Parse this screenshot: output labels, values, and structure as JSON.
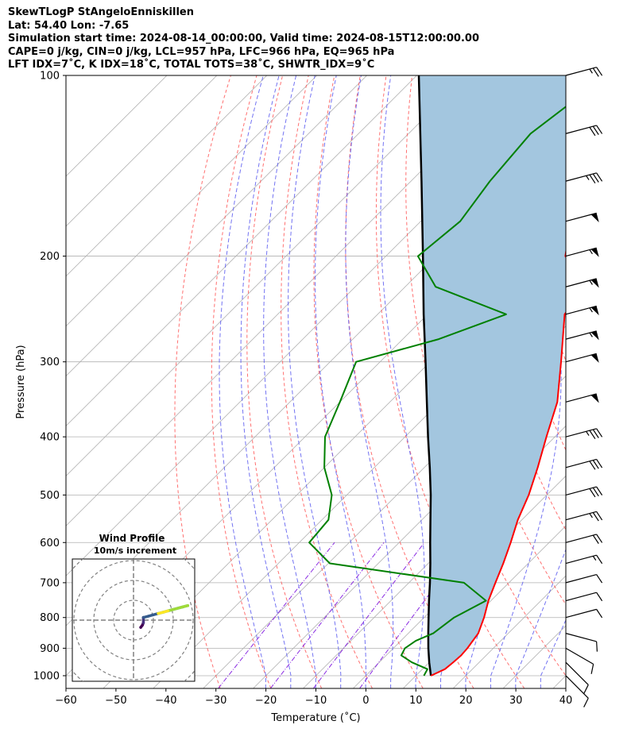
{
  "header": {
    "line1": "SkewTLogP StAngeloEnniskillen",
    "line2": "Lat: 54.40   Lon: -7.65",
    "line3": "Simulation start time: 2024-08-14_00:00:00, Valid time: 2024-08-15T12:00:00.00",
    "line4": "CAPE=0 j/kg, CIN=0 j/kg, LCL=957 hPa, LFC=966 hPa, EQ=965 hPa",
    "line5": "LFT IDX=7˚C, K IDX=18˚C, TOTAL TOTS=38˚C, SHWTR_IDX=9˚C"
  },
  "colors": {
    "temperature": "#ff0000",
    "dewpoint": "#008000",
    "parcel": "#000000",
    "shading": "#a3c6df",
    "dry_adiabat": "#ff6060",
    "moist_adiabat": "#5b5bf0",
    "mixing_ratio": "#8a2be2",
    "grid": "#b0b0b0"
  },
  "chart_data": {
    "type": "line",
    "subtype": "skew-t log-p",
    "xlabel": "Temperature (˚C)",
    "ylabel": "Pressure (hPa)",
    "xlim": [
      -60,
      40
    ],
    "ylim": [
      1050,
      100
    ],
    "y_scale": "log",
    "grid": true,
    "x_ticks": [
      "−60",
      "−50",
      "−40",
      "−30",
      "−20",
      "−10",
      "0",
      "10",
      "20",
      "30",
      "40"
    ],
    "x_tick_values": [
      -60,
      -50,
      -40,
      -30,
      -20,
      -10,
      0,
      10,
      20,
      30,
      40
    ],
    "y_ticks": [
      "100",
      "200",
      "300",
      "400",
      "500",
      "600",
      "700",
      "800",
      "900",
      "1000"
    ],
    "y_tick_values": [
      100,
      200,
      300,
      400,
      500,
      600,
      700,
      800,
      900,
      1000
    ],
    "series": [
      {
        "key": "temperature",
        "pressure": [
          1000,
          975,
          950,
          925,
          900,
          850,
          800,
          750,
          700,
          650,
          600,
          550,
          500,
          450,
          400,
          350,
          300,
          250,
          225,
          200,
          175,
          150,
          125,
          110,
          100
        ],
        "values": [
          13.0,
          14.5,
          14.8,
          15.0,
          14.8,
          14.0,
          12.0,
          9.5,
          7.3,
          5.0,
          2.3,
          -0.8,
          -3.6,
          -7.3,
          -11.7,
          -16.5,
          -23.8,
          -32.6,
          -34.0,
          -44.1,
          -50.0,
          -52.0,
          -54.0,
          -55.5,
          -57.0
        ]
      },
      {
        "key": "dewpoint",
        "pressure": [
          1000,
          975,
          950,
          925,
          900,
          875,
          850,
          800,
          750,
          700,
          650,
          600,
          550,
          500,
          450,
          400,
          350,
          300,
          275,
          250,
          225,
          200,
          175,
          150,
          125,
          100
        ],
        "values": [
          11.6,
          11.0,
          6.5,
          3.0,
          2.3,
          3.0,
          5.0,
          6.0,
          9.0,
          1.0,
          -29.7,
          -38.0,
          -38.7,
          -43.0,
          -50.0,
          -56.0,
          -60.0,
          -64.8,
          -52.8,
          -44.3,
          -63.9,
          -73.6,
          -72.1,
          -74.2,
          -75.6,
          -72.0
        ]
      },
      {
        "key": "parcel",
        "pressure": [
          1000,
          950,
          900,
          850,
          800,
          750,
          700,
          650,
          600,
          550,
          500,
          450,
          400,
          350,
          300,
          250,
          200,
          150,
          100
        ],
        "values": [
          13.0,
          10.0,
          7.0,
          4.0,
          0.9,
          -2.4,
          -5.8,
          -9.6,
          -13.8,
          -18.3,
          -23.2,
          -28.9,
          -35.4,
          -42.6,
          -50.9,
          -60.8,
          -72.6,
          -87.9,
          -109.6
        ]
      }
    ],
    "wind_barbs": {
      "pressure": [
        100,
        125,
        150,
        175,
        200,
        225,
        250,
        275,
        300,
        350,
        400,
        450,
        500,
        550,
        600,
        650,
        700,
        750,
        800,
        850,
        900,
        950,
        1000
      ],
      "speed_kt": [
        25,
        30,
        35,
        50,
        55,
        55,
        55,
        55,
        50,
        50,
        35,
        30,
        30,
        25,
        20,
        15,
        10,
        10,
        10,
        10,
        10,
        10,
        10
      ],
      "direction_deg": [
        255,
        255,
        255,
        255,
        255,
        255,
        255,
        255,
        255,
        255,
        255,
        255,
        255,
        255,
        255,
        255,
        255,
        255,
        255,
        285,
        300,
        315,
        315
      ]
    },
    "hodograph": {
      "title": "Wind Profile",
      "subtitle": "10m/s increment",
      "rings_ms": [
        10,
        20,
        30,
        40,
        50
      ]
    }
  }
}
